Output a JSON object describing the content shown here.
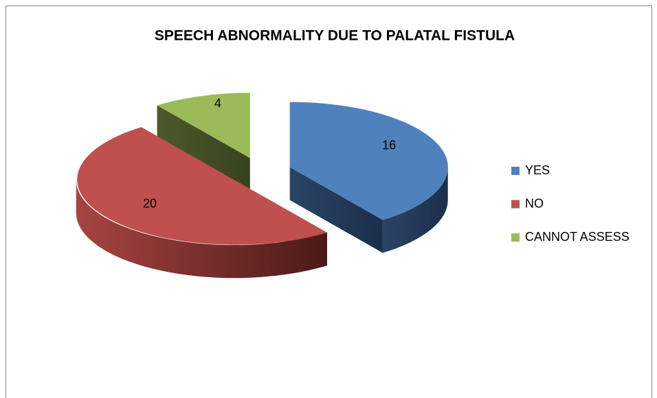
{
  "chart_data": {
    "type": "pie",
    "title": "SPEECH ABNORMALITY DUE TO PALATAL FISTULA",
    "categories": [
      "YES",
      "NO",
      "CANNOT ASSESS"
    ],
    "values": [
      16,
      20,
      4
    ],
    "colors": [
      "#4f81bd",
      "#c0504d",
      "#9bbb59"
    ],
    "legend": "right"
  }
}
